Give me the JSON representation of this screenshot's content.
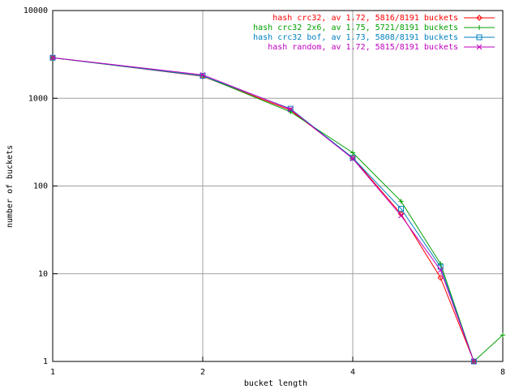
{
  "chart_data": {
    "type": "line",
    "xlabel": "bucket length",
    "ylabel": "number of buckets",
    "x": [
      1,
      2,
      3,
      4,
      5,
      6,
      7,
      8
    ],
    "xlog": true,
    "ylog": true,
    "grid": true,
    "legend": "top-right",
    "xlim": [
      1,
      8
    ],
    "xticks": [
      1,
      2,
      4,
      8
    ],
    "ylim": [
      1,
      10000
    ],
    "yticks": [
      1,
      10,
      100,
      1000,
      10000
    ],
    "series": [
      {
        "name": "hash crc32, av 1.72, 5816/8191 buckets",
        "color": "#ff0000",
        "marker": "diamond",
        "values": [
          2900,
          1780,
          730,
          210,
          48,
          9,
          1,
          null
        ]
      },
      {
        "name": "hash crc32 2x6, av 1.75, 5721/8191 buckets",
        "color": "#00a000",
        "marker": "plus",
        "values": [
          2900,
          1800,
          700,
          240,
          67,
          13,
          1,
          2
        ]
      },
      {
        "name": "hash crc32 bof, av 1.73, 5808/8191 buckets",
        "color": "#0080c0",
        "marker": "square",
        "values": [
          2900,
          1800,
          760,
          210,
          55,
          12,
          1,
          null
        ]
      },
      {
        "name": "hash random, av 1.72, 5815/8191 buckets",
        "color": "#c000c0",
        "marker": "cross",
        "values": [
          2900,
          1850,
          750,
          205,
          46,
          11,
          1,
          null
        ]
      }
    ]
  }
}
